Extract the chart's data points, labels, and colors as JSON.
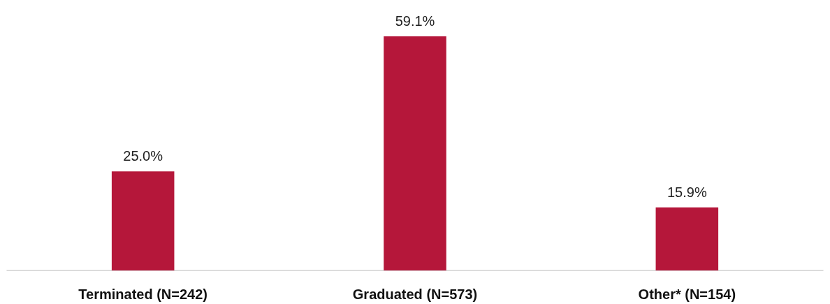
{
  "chart_data": {
    "type": "bar",
    "categories": [
      "Terminated (N=242)",
      "Graduated (N=573)",
      "Other* (N=154)"
    ],
    "values": [
      25.0,
      59.1,
      15.9
    ],
    "value_labels": [
      "25.0%",
      "59.1%",
      "15.9%"
    ],
    "color": "#b5173a"
  }
}
